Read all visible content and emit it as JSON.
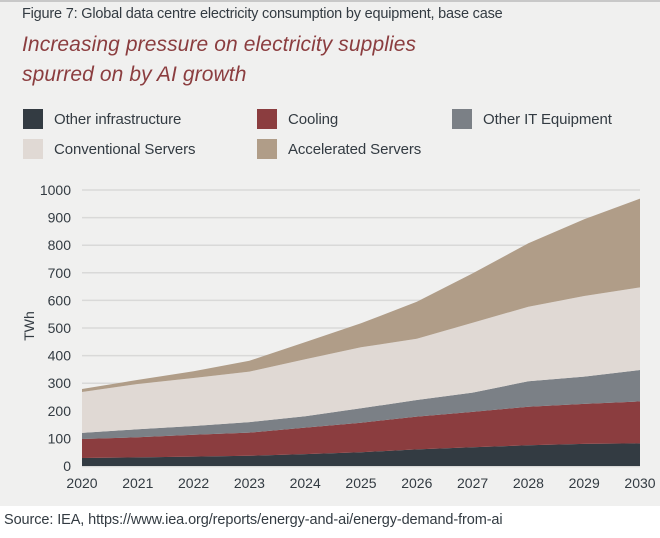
{
  "figure_label": "Figure 7: Global data centre electricity consumption by equipment, base case",
  "title_lines": [
    "Increasing pressure on electricity supplies",
    "spurred on by AI growth"
  ],
  "source": "Source: IEA, https://www.iea.org/reports/energy-and-ai/energy-demand-from-ai",
  "chart_data": {
    "type": "area",
    "stacked": true,
    "title": "Increasing pressure on electricity supplies spurred on by AI growth",
    "subtitle": "Figure 7: Global data centre electricity consumption by equipment, base case",
    "xlabel": "",
    "ylabel": "TWh",
    "ylim": [
      0,
      1000
    ],
    "yticks": [
      0,
      100,
      200,
      300,
      400,
      500,
      600,
      700,
      800,
      900,
      1000
    ],
    "grid": true,
    "legend_position": "top",
    "x": [
      "2020",
      "2021",
      "2022",
      "2023",
      "2024",
      "2025",
      "2026",
      "2027",
      "2028",
      "2029",
      "2030"
    ],
    "series": [
      {
        "name": "Other infrastructure",
        "color": "#333b42",
        "values": [
          29,
          31,
          34,
          37,
          43,
          50,
          60,
          68,
          75,
          80,
          82
        ]
      },
      {
        "name": "Cooling",
        "color": "#8b3d3f",
        "values": [
          69,
          73,
          79,
          84,
          96,
          107,
          119,
          128,
          140,
          145,
          152
        ]
      },
      {
        "name": "Other IT Equipment",
        "color": "#7b8086",
        "values": [
          22,
          29,
          32,
          38,
          41,
          52,
          60,
          70,
          92,
          99,
          114
        ]
      },
      {
        "name": "Conventional Servers",
        "color": "#e0d9d4",
        "values": [
          148,
          164,
          174,
          183,
          207,
          221,
          222,
          253,
          270,
          292,
          299
        ]
      },
      {
        "name": "Accelerated Servers",
        "color": "#b09d88",
        "values": [
          11,
          15,
          24,
          39,
          62,
          87,
          134,
          179,
          230,
          278,
          322
        ]
      }
    ]
  }
}
